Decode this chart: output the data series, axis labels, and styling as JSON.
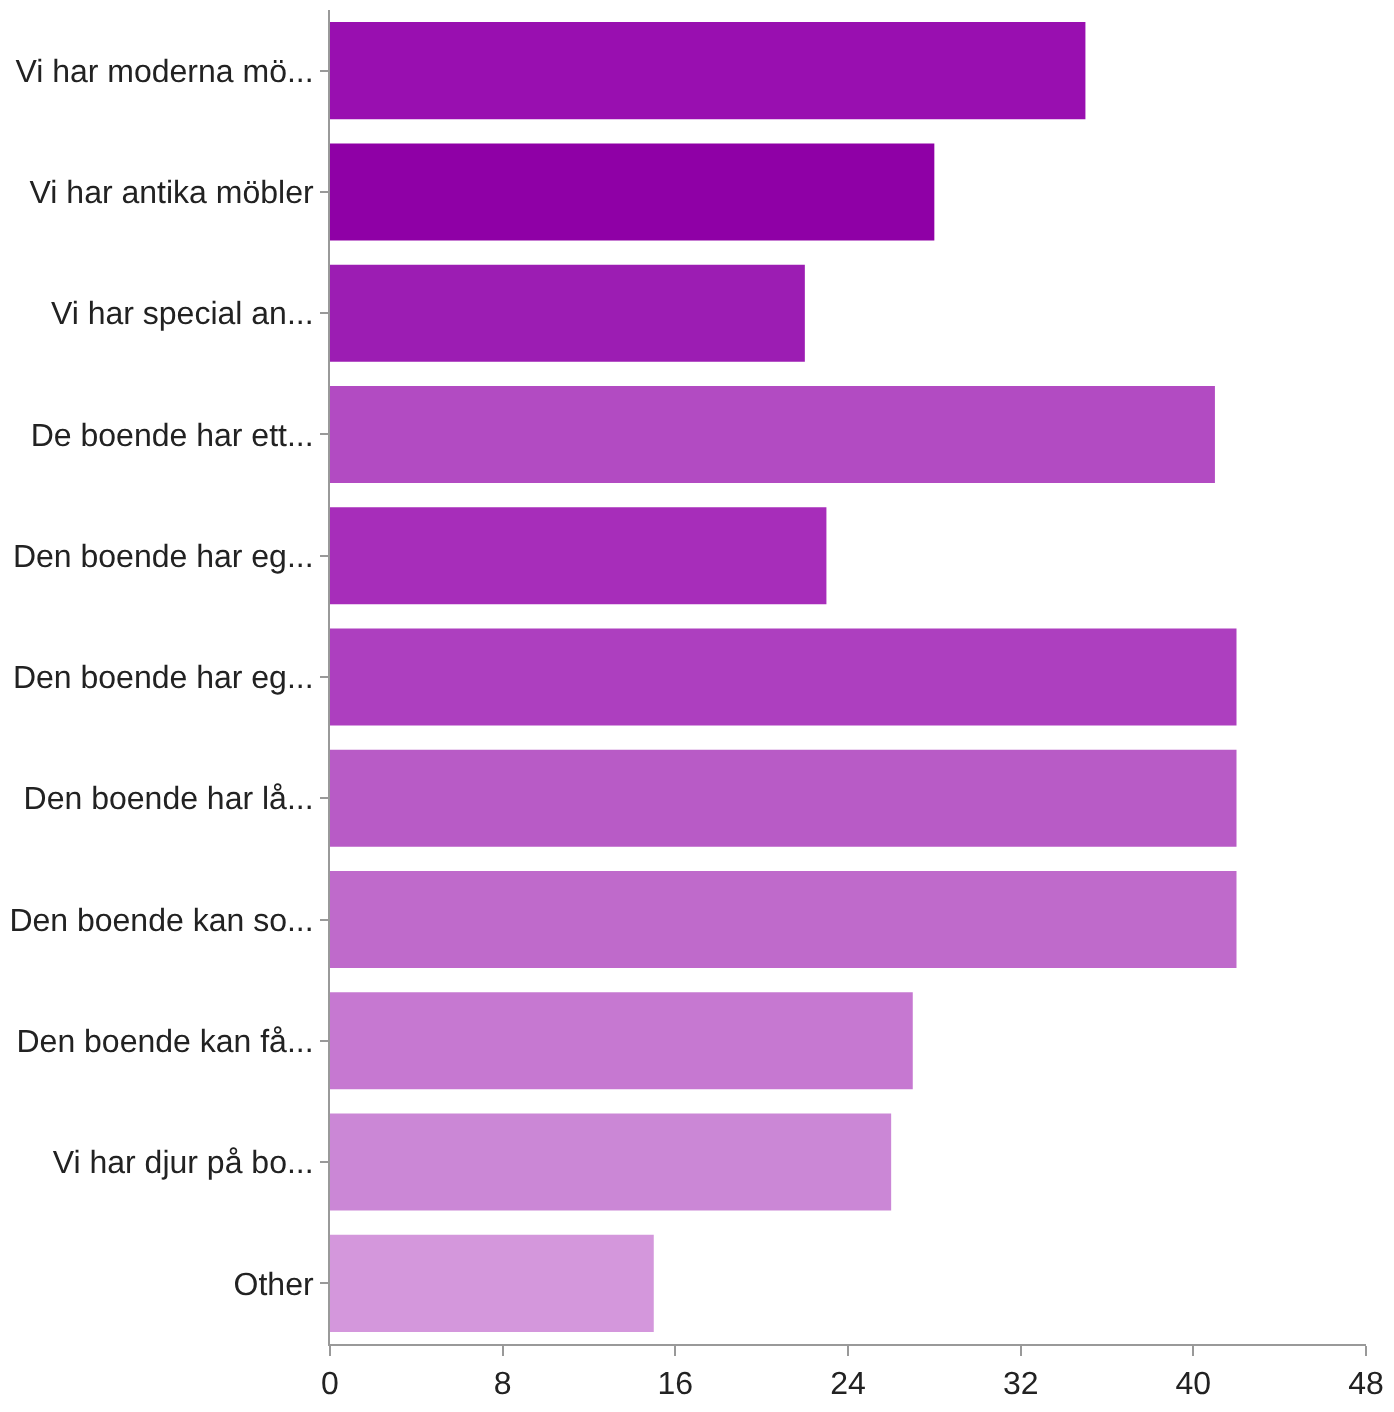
{
  "chart_data": {
    "type": "bar",
    "orientation": "horizontal",
    "categories": [
      "Vi har moderna mö...",
      "Vi har antika möbler",
      "Vi har special an...",
      "De boende har ett...",
      "Den boende har eg...",
      "Den boende har eg...",
      "Den boende har lå...",
      "Den boende kan so...",
      "Den boende kan få...",
      "Vi har djur på bo...",
      "Other"
    ],
    "values": [
      35,
      28,
      22,
      41,
      23,
      42,
      42,
      42,
      27,
      26,
      15
    ],
    "colors": [
      "#990fb0",
      "#8f00a6",
      "#9c1db3",
      "#b24bc2",
      "#a72dba",
      "#ad3fbf",
      "#b85bc6",
      "#bf6acb",
      "#c678d1",
      "#cb87d6",
      "#d497dc"
    ],
    "xlim": [
      0,
      48
    ],
    "xticks": [
      0,
      8,
      16,
      24,
      32,
      40,
      48
    ]
  }
}
